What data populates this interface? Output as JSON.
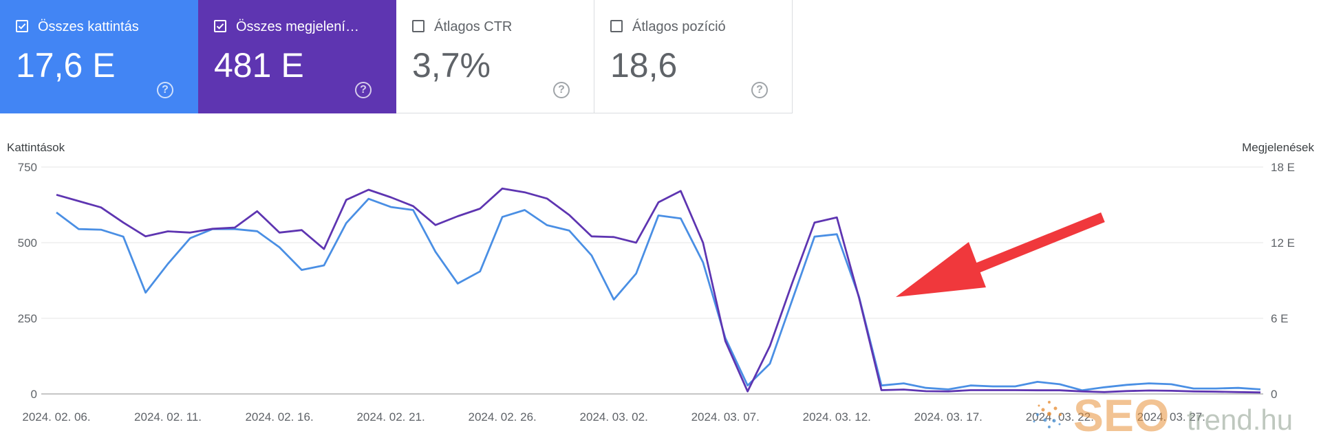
{
  "metrics": [
    {
      "label": "Összes kattintás",
      "value": "17,6 E",
      "checked": true
    },
    {
      "label": "Összes megjelení…",
      "value": "481 E",
      "checked": true
    },
    {
      "label": "Átlagos CTR",
      "value": "3,7%",
      "checked": false
    },
    {
      "label": "Átlagos pozíció",
      "value": "18,6",
      "checked": false
    }
  ],
  "help_icon": "?",
  "watermark": {
    "seo": "SEO",
    "trend": "trend.hu"
  },
  "chart_data": {
    "type": "line",
    "yleft_label": "Kattintások",
    "yright_label": "Megjelenések",
    "yleft_ticks": [
      "750",
      "500",
      "250",
      "0"
    ],
    "yright_ticks": [
      "18 E",
      "12 E",
      "6 E",
      "0"
    ],
    "yleft_lim": [
      0,
      750
    ],
    "yright_lim": [
      0,
      18000
    ],
    "x_ticks": [
      "2024. 02. 06.",
      "2024. 02. 11.",
      "2024. 02. 16.",
      "2024. 02. 21.",
      "2024. 02. 26.",
      "2024. 03. 02.",
      "2024. 03. 07.",
      "2024. 03. 12.",
      "2024. 03. 17.",
      "2024. 03. 22.",
      "2024. 03. 27."
    ],
    "x_tick_days": [
      0,
      5,
      10,
      15,
      20,
      25,
      30,
      35,
      40,
      45,
      50
    ],
    "grid": true,
    "series": [
      {
        "name": "Összes kattintás",
        "axis": "left",
        "color": "#4a8fe4",
        "values": [
          600,
          545,
          543,
          520,
          335,
          430,
          515,
          545,
          545,
          538,
          485,
          410,
          425,
          565,
          645,
          618,
          608,
          470,
          365,
          405,
          585,
          608,
          558,
          540,
          458,
          312,
          398,
          590,
          580,
          435,
          185,
          28,
          100,
          310,
          520,
          528,
          320,
          28,
          35,
          20,
          15,
          28,
          25,
          25,
          40,
          32,
          12,
          22,
          30,
          35,
          32,
          18,
          18,
          20,
          15
        ]
      },
      {
        "name": "Összes megjelenítés",
        "axis": "right",
        "color": "#5e35b1",
        "values": [
          15800,
          15300,
          14800,
          13600,
          12500,
          12900,
          12800,
          13100,
          13200,
          14500,
          12800,
          13000,
          11500,
          15400,
          16200,
          15600,
          14900,
          13400,
          14100,
          14700,
          16300,
          16000,
          15500,
          14200,
          12500,
          12450,
          12000,
          15200,
          16100,
          12000,
          4200,
          200,
          3800,
          8800,
          13600,
          14000,
          7600,
          300,
          350,
          220,
          200,
          300,
          300,
          300,
          290,
          290,
          200,
          150,
          230,
          270,
          250,
          200,
          180,
          150,
          120
        ]
      }
    ]
  }
}
